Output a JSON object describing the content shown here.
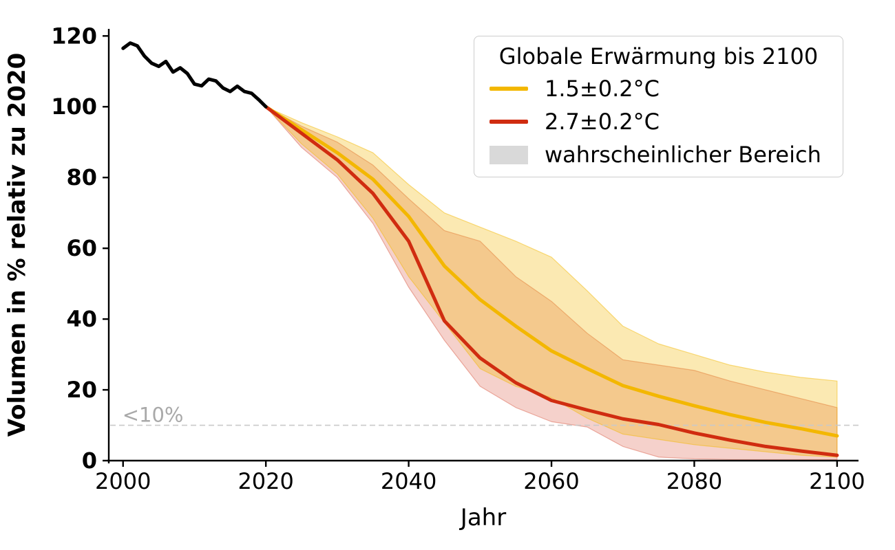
{
  "chart_data": {
    "type": "line",
    "title": "",
    "xlabel": "Jahr",
    "ylabel": "Volumen in % relativ zu 2020",
    "xlim": [
      1998,
      2103
    ],
    "ylim": [
      0,
      122
    ],
    "xticks": [
      2000,
      2020,
      2040,
      2060,
      2080,
      2100
    ],
    "yticks": [
      0,
      20,
      40,
      60,
      80,
      100,
      120
    ],
    "grid": false,
    "background": "#ffffff",
    "axis_color": "#000000",
    "threshold_line": {
      "y": 10,
      "style": "dashed",
      "color": "#c9c9c9"
    },
    "annotation": {
      "text": "<10%",
      "x": 1999.9,
      "y": 11,
      "color": "#a9a9a9"
    },
    "legend": {
      "position": "upper right",
      "title": "Globale Erwärmung bis 2100",
      "entries": [
        {
          "label": "1.5±0.2°C",
          "type": "line",
          "color": "#f3b700"
        },
        {
          "label": "2.7±0.2°C",
          "type": "line",
          "color": "#d02c10"
        },
        {
          "label": "wahrscheinlicher Bereich",
          "type": "patch",
          "color": "#d9d9d9"
        }
      ]
    },
    "series": [
      {
        "id": "historisch",
        "color": "#000000",
        "line_width": 5,
        "x": [
          2000,
          2001,
          2002,
          2003,
          2004,
          2005,
          2006,
          2007,
          2008,
          2009,
          2010,
          2011,
          2012,
          2013,
          2014,
          2015,
          2016,
          2017,
          2018,
          2019,
          2020
        ],
        "values": [
          116.5,
          118,
          117.2,
          114.3,
          112.3,
          111.4,
          112.8,
          109.8,
          111,
          109.4,
          106.4,
          105.9,
          107.8,
          107.3,
          105.3,
          104.3,
          105.8,
          104.3,
          103.8,
          102,
          100
        ]
      },
      {
        "id": "1.5±0.2°C",
        "color": "#f3b700",
        "line_width": 5,
        "x": [
          2020,
          2025,
          2030,
          2035,
          2040,
          2045,
          2050,
          2055,
          2060,
          2065,
          2070,
          2075,
          2080,
          2085,
          2090,
          2095,
          2100
        ],
        "values": [
          100,
          93.5,
          87,
          79.5,
          69,
          55,
          45.5,
          38,
          31,
          26,
          21.2,
          18.2,
          15.5,
          13,
          10.8,
          9,
          7
        ],
        "band_upper": [
          100,
          95.5,
          91.5,
          87,
          78,
          70,
          66,
          62,
          57.5,
          48,
          38,
          33,
          30,
          27,
          25,
          23.5,
          22.5
        ],
        "band_lower": [
          100,
          89.5,
          81,
          68.5,
          52,
          39,
          26,
          21,
          17.8,
          12,
          7.5,
          6,
          4.5,
          3.5,
          2.5,
          1.5,
          1
        ],
        "band_color": "#f3b700",
        "band_alpha": 0.3
      },
      {
        "id": "2.7±0.2°C",
        "color": "#d02c10",
        "line_width": 5,
        "x": [
          2020,
          2025,
          2030,
          2035,
          2040,
          2045,
          2050,
          2055,
          2060,
          2065,
          2070,
          2075,
          2080,
          2085,
          2090,
          2095,
          2100
        ],
        "values": [
          100,
          92.5,
          85,
          75.5,
          62,
          39.5,
          29,
          22,
          17,
          14.3,
          11.8,
          10.2,
          7.8,
          5.8,
          4,
          2.7,
          1.5
        ],
        "band_upper": [
          100,
          94.5,
          90,
          83.5,
          74,
          65,
          62,
          52,
          45,
          36,
          28.5,
          27,
          25.5,
          22.5,
          20,
          17.5,
          15
        ],
        "band_lower": [
          100,
          88.5,
          80,
          67,
          49,
          34,
          21,
          15,
          11,
          9.5,
          4,
          1,
          0.5,
          0.3,
          0.3,
          0.3,
          0.3
        ],
        "band_color": "#d02c10",
        "band_alpha": 0.22
      }
    ]
  }
}
